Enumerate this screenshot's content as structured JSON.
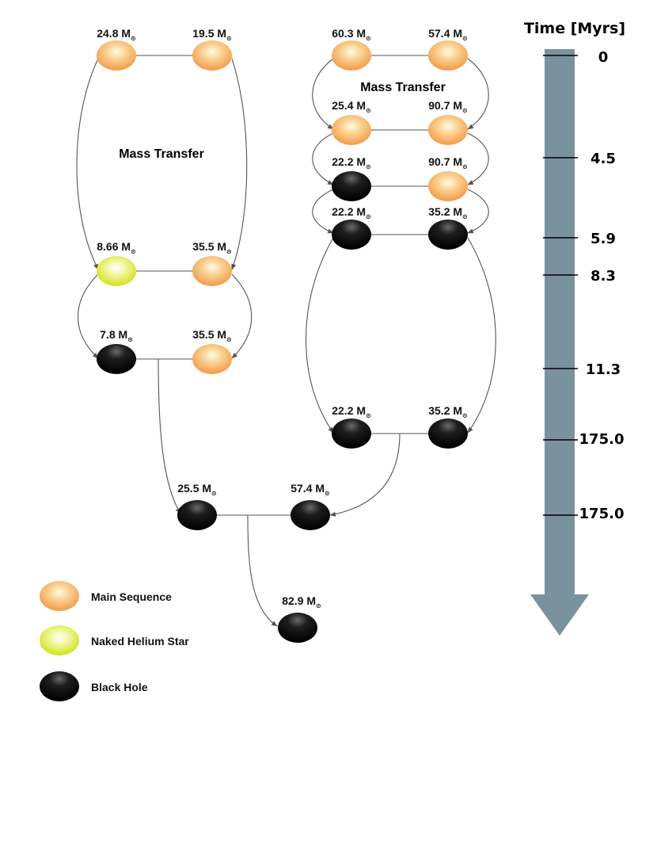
{
  "colors": {
    "main_sequence": "#f5a14e",
    "naked_helium": "#d7e81f",
    "black_hole": "#111111",
    "timeline": "#7a929e",
    "line": "#555555"
  },
  "mass_transfer_label": "Mass Transfer",
  "mass_unit": "M",
  "sun_symbol": "⊙",
  "stars": [
    {
      "id": "L1a",
      "mass": "24.8",
      "type": "main_sequence"
    },
    {
      "id": "L1b",
      "mass": "19.5",
      "type": "main_sequence"
    },
    {
      "id": "L2a",
      "mass": "8.66",
      "type": "naked_helium"
    },
    {
      "id": "L2b",
      "mass": "35.5",
      "type": "main_sequence"
    },
    {
      "id": "L3a",
      "mass": "7.8",
      "type": "black_hole"
    },
    {
      "id": "L3b",
      "mass": "35.5",
      "type": "main_sequence"
    },
    {
      "id": "R1a",
      "mass": "60.3",
      "type": "main_sequence"
    },
    {
      "id": "R1b",
      "mass": "57.4",
      "type": "main_sequence"
    },
    {
      "id": "R2a",
      "mass": "25.4",
      "type": "main_sequence"
    },
    {
      "id": "R2b",
      "mass": "90.7",
      "type": "main_sequence"
    },
    {
      "id": "R3a",
      "mass": "22.2",
      "type": "black_hole"
    },
    {
      "id": "R3b",
      "mass": "90.7",
      "type": "main_sequence"
    },
    {
      "id": "R4a",
      "mass": "22.2",
      "type": "black_hole"
    },
    {
      "id": "R4b",
      "mass": "35.2",
      "type": "black_hole"
    },
    {
      "id": "R5a",
      "mass": "22.2",
      "type": "black_hole"
    },
    {
      "id": "R5b",
      "mass": "35.2",
      "type": "black_hole"
    },
    {
      "id": "M1a",
      "mass": "25.5",
      "type": "black_hole"
    },
    {
      "id": "M1b",
      "mass": "57.4",
      "type": "black_hole"
    },
    {
      "id": "F1",
      "mass": "82.9",
      "type": "black_hole"
    }
  ],
  "legend": [
    {
      "label": "Main Sequence",
      "type": "main_sequence"
    },
    {
      "label": "Naked Helium Star",
      "type": "naked_helium"
    },
    {
      "label": "Black Hole",
      "type": "black_hole"
    }
  ],
  "timeline": {
    "title": "Time [Myrs]",
    "ticks": [
      "0",
      "4.5",
      "5.9",
      "8.3",
      "11.3",
      "175.0",
      "175.0"
    ]
  }
}
